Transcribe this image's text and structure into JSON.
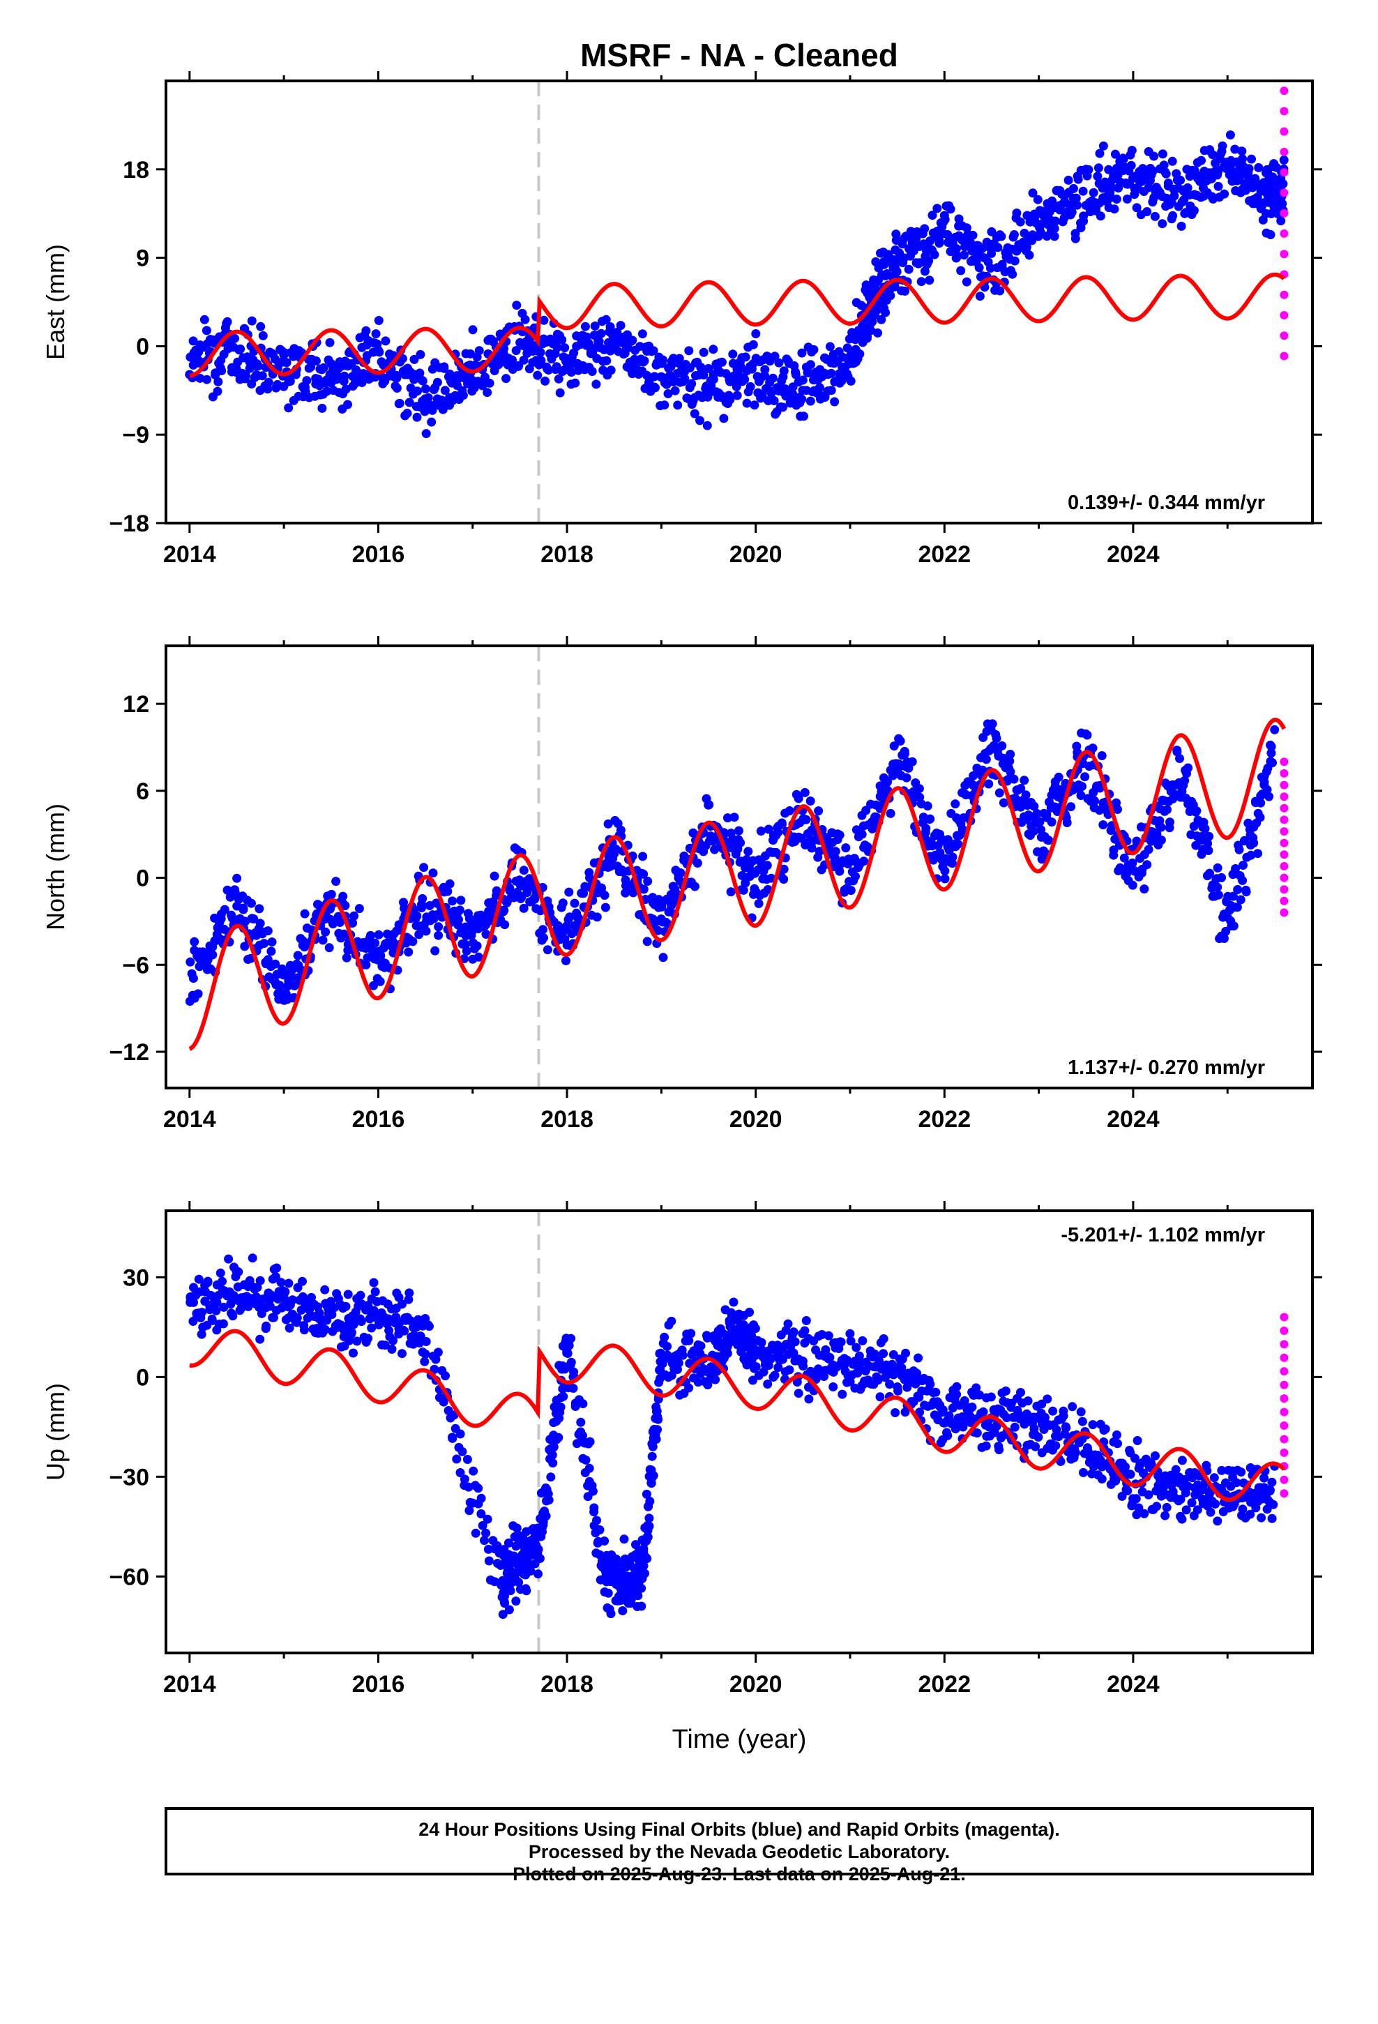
{
  "title": "MSRF  - NA - Cleaned",
  "xlabel": "Time (year)",
  "footer": [
    "24 Hour Positions Using Final Orbits (blue) and Rapid Orbits (magenta).",
    "Processed by the Nevada Geodetic Laboratory.",
    "Plotted on 2025-Aug-23. Last data on 2025-Aug-21."
  ],
  "colors": {
    "final": "#0000ff",
    "rapid": "#ff00ff",
    "model": "#ff0000",
    "offset": "#c8c8c8"
  },
  "chart_data": [
    {
      "type": "scatter",
      "ylabel": "East (mm)",
      "rate_label": "0.139+/- 0.344 mm/yr",
      "rate_position": "bottom-right",
      "xlim": [
        2013.75,
        2025.9
      ],
      "ylim": [
        -18,
        27
      ],
      "xticks": [
        2014,
        2016,
        2018,
        2020,
        2022,
        2024
      ],
      "yticks": [
        18,
        9,
        0,
        -9,
        -18
      ],
      "offset_epoch": 2017.7,
      "trend": {
        "x": [
          2014,
          2016,
          2017.69,
          2017.71,
          2020,
          2022,
          2024,
          2025.6
        ],
        "y": [
          -0.8,
          -0.5,
          -0.3,
          4.0,
          4.4,
          4.6,
          4.9,
          5.1
        ]
      },
      "seasonal_amplitude": 2.2,
      "final_orbits": {
        "x": [
          2014.0,
          2014.5,
          2015.0,
          2015.5,
          2016.0,
          2016.5,
          2017.0,
          2017.5,
          2018.0,
          2018.5,
          2019.0,
          2019.5,
          2020.0,
          2020.5,
          2021.0,
          2021.25,
          2021.5,
          2022.0,
          2022.5,
          2023.0,
          2023.5,
          2024.0,
          2024.5,
          2025.0,
          2025.4,
          2025.6
        ],
        "y": [
          -1.0,
          -0.5,
          -2.0,
          -3.0,
          -1.0,
          -5.0,
          -2.0,
          0.5,
          -1.0,
          0.0,
          -3.0,
          -4.0,
          -3.0,
          -4.0,
          -2.0,
          5.0,
          8.0,
          12.0,
          8.0,
          13.0,
          15.0,
          18.0,
          15.0,
          19.0,
          15.0,
          16.0
        ]
      },
      "rapid_orbits": {
        "x": [
          2025.6,
          2025.62,
          2025.64
        ],
        "y": [
          -1,
          10,
          26
        ]
      }
    },
    {
      "type": "scatter",
      "ylabel": "North (mm)",
      "rate_label": "1.137+/- 0.270 mm/yr",
      "rate_position": "bottom-right",
      "xlim": [
        2013.75,
        2025.9
      ],
      "ylim": [
        -14.5,
        16
      ],
      "xticks": [
        2014,
        2016,
        2018,
        2020,
        2022,
        2024
      ],
      "yticks": [
        12,
        6,
        0,
        -6,
        -12
      ],
      "offset_epoch": 2017.7,
      "trend": {
        "x": [
          2014,
          2016,
          2018,
          2020,
          2022,
          2024,
          2025.6
        ],
        "y": [
          -8.0,
          -4.5,
          -1.5,
          0.5,
          3.0,
          5.5,
          7.2
        ]
      },
      "seasonal_amplitude": 3.8,
      "final_orbits": {
        "x": [
          2014.0,
          2014.5,
          2015.0,
          2015.5,
          2016.0,
          2016.5,
          2017.0,
          2017.5,
          2018.0,
          2018.5,
          2019.0,
          2019.5,
          2020.0,
          2020.5,
          2021.0,
          2021.5,
          2022.0,
          2022.5,
          2023.0,
          2023.5,
          2024.0,
          2024.5,
          2025.0,
          2025.5
        ],
        "y": [
          -7.0,
          -2.0,
          -8.0,
          -2.0,
          -6.0,
          -2.0,
          -4.0,
          0.0,
          -4.0,
          2.0,
          -3.0,
          3.0,
          0.0,
          4.0,
          0.0,
          8.0,
          1.0,
          9.0,
          3.0,
          8.0,
          0.0,
          7.0,
          -3.0,
          9.0
        ]
      },
      "rapid_orbits": {
        "x": [
          2025.6,
          2025.62,
          2025.64
        ],
        "y": [
          -2.4,
          4,
          8
        ]
      }
    },
    {
      "type": "scatter",
      "ylabel": "Up (mm)",
      "rate_label": "-5.201+/- 1.102 mm/yr",
      "rate_position": "top-right",
      "xlim": [
        2013.75,
        2025.9
      ],
      "ylim": [
        -83,
        50
      ],
      "xticks": [
        2014,
        2016,
        2018,
        2020,
        2022,
        2024
      ],
      "yticks": [
        30,
        0,
        -30,
        -60
      ],
      "offset_epoch": 2017.7,
      "trend": {
        "x": [
          2014,
          2016,
          2017.69,
          2017.71,
          2020,
          2022,
          2024,
          2025.6
        ],
        "y": [
          10,
          -1,
          -13,
          6,
          -3,
          -16,
          -26,
          -33
        ]
      },
      "seasonal_amplitude": 6.5,
      "final_orbits": {
        "x": [
          2014.0,
          2014.5,
          2015.0,
          2015.5,
          2016.0,
          2016.5,
          2017.3,
          2017.5,
          2017.7,
          2018.0,
          2018.4,
          2018.6,
          2018.8,
          2019.0,
          2019.5,
          2019.8,
          2020.0,
          2020.5,
          2021.0,
          2021.5,
          2022.0,
          2022.5,
          2023.0,
          2023.5,
          2024.0,
          2024.5,
          2025.0,
          2025.5
        ],
        "y": [
          22.0,
          25.0,
          22.0,
          18.0,
          20.0,
          12.0,
          -60.0,
          -55.0,
          -50.0,
          10.0,
          -60.0,
          -62.0,
          -58.0,
          5.0,
          3.0,
          15.0,
          5.0,
          5.0,
          5.0,
          0.0,
          -10.0,
          -12.0,
          -15.0,
          -20.0,
          -30.0,
          -35.0,
          -35.0,
          -35.0
        ]
      },
      "rapid_orbits": {
        "x": [
          2025.6,
          2025.62,
          2025.64
        ],
        "y": [
          -35,
          -10,
          18
        ]
      }
    }
  ]
}
